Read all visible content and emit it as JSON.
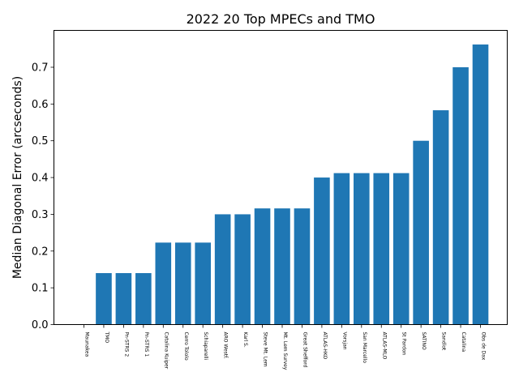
{
  "chart_data": {
    "type": "bar",
    "title": "2022 20 Top MPECs and TMO",
    "xlabel": "",
    "ylabel": "Median Diagonal Error (arcseconds)",
    "ylim": [
      0,
      0.8
    ],
    "yticks": [
      "0.0",
      "0.1",
      "0.2",
      "0.3",
      "0.4",
      "0.5",
      "0.6",
      "0.7"
    ],
    "grid": false,
    "bar_color": "#1f77b4",
    "categories": [
      "Maunakea",
      "TMO",
      "Pn-STRS 2",
      "Pn-STRS 1",
      "Catalina Kuiper",
      "Cerro Tololo",
      "Schiaparelli",
      "ARO Westf.",
      "Karl S.",
      "Steve Mt. Lem",
      "Mt. Lem Survey",
      "Great Shefford",
      "ATLAS-HKO",
      "Vorsjan",
      "San Marcello",
      "ATLAS-MLO",
      "St Pardon",
      "SATINO",
      "Sandlot",
      "Catalina",
      "Obs de Dax"
    ],
    "values": [
      0.0,
      0.14,
      0.14,
      0.14,
      0.223,
      0.223,
      0.223,
      0.3,
      0.3,
      0.316,
      0.316,
      0.316,
      0.4,
      0.412,
      0.412,
      0.412,
      0.412,
      0.5,
      0.583,
      0.7,
      0.762
    ]
  }
}
